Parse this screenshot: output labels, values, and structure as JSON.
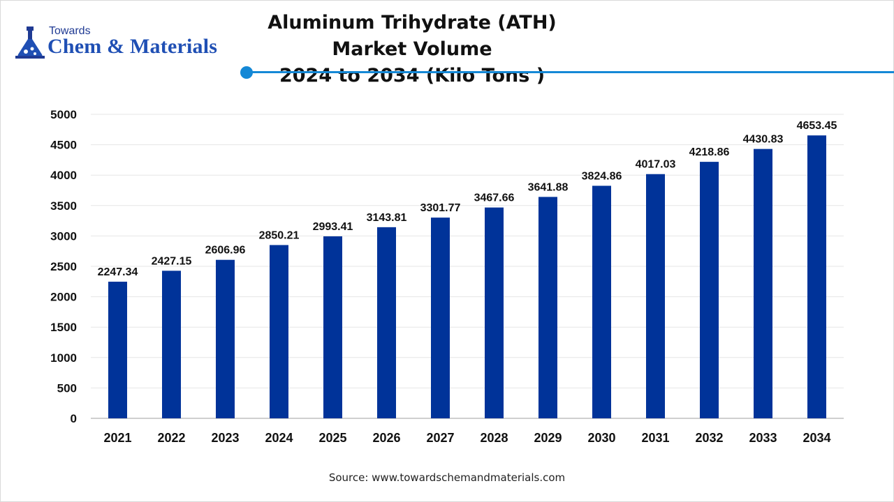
{
  "brand": {
    "small": "Towards",
    "big": "Chem & Materials"
  },
  "colors": {
    "bar": "#003399",
    "accent": "#1488d6"
  },
  "source": "Source: www.towardschemandmaterials.com",
  "chart_data": {
    "type": "bar",
    "title_line1": "Aluminum Trihydrate (ATH) Market Volume",
    "title_line2": "2024 to 2034 (Kilo Tons )",
    "categories": [
      "2021",
      "2022",
      "2023",
      "2024",
      "2025",
      "2026",
      "2027",
      "2028",
      "2029",
      "2030",
      "2031",
      "2032",
      "2033",
      "2034"
    ],
    "values": [
      2247.34,
      2427.15,
      2606.96,
      2850.21,
      2993.41,
      3143.81,
      3301.77,
      3467.66,
      3641.88,
      3824.86,
      4017.03,
      4218.86,
      4430.83,
      4653.45
    ],
    "value_labels": [
      "2247.34",
      "2427.15",
      "2606.96",
      "2850.21",
      "2993.41",
      "3143.81",
      "3301.77",
      "3467.66",
      "3641.88",
      "3824.86",
      "4017.03",
      "4218.86",
      "4430.83",
      "4653.45"
    ],
    "xlabel": "",
    "ylabel": "",
    "ylim": [
      0,
      5000
    ],
    "yticks": [
      0,
      500,
      1000,
      1500,
      2000,
      2500,
      3000,
      3500,
      4000,
      4500,
      5000
    ],
    "grid": true,
    "legend": "none"
  }
}
